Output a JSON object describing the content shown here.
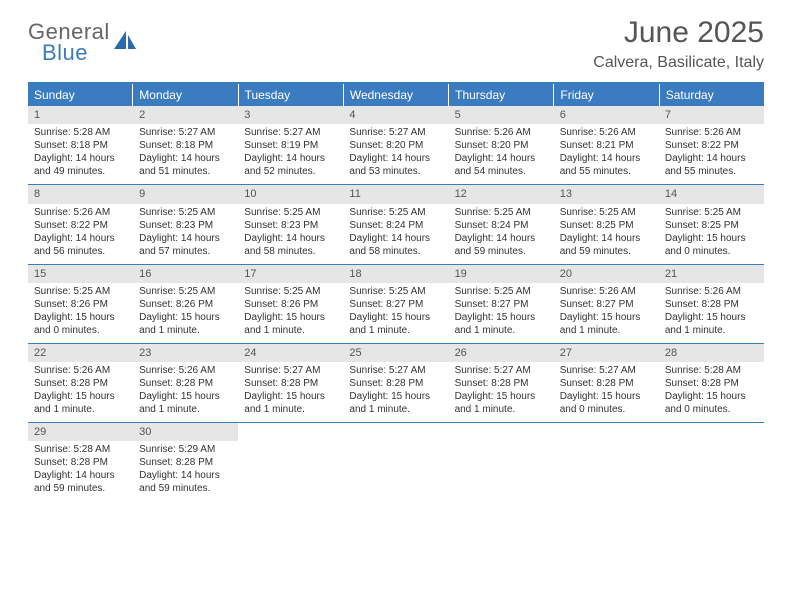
{
  "logo": {
    "general": "General",
    "blue": "Blue"
  },
  "header": {
    "title": "June 2025",
    "location": "Calvera, Basilicate, Italy"
  },
  "colors": {
    "brand": "#3b7bbf",
    "text": "#555555",
    "header_bg": "#e6e6e6"
  },
  "weekdays": [
    "Sunday",
    "Monday",
    "Tuesday",
    "Wednesday",
    "Thursday",
    "Friday",
    "Saturday"
  ],
  "weeks": [
    [
      {
        "n": "1",
        "sr": "Sunrise: 5:28 AM",
        "ss": "Sunset: 8:18 PM",
        "d1": "Daylight: 14 hours",
        "d2": "and 49 minutes."
      },
      {
        "n": "2",
        "sr": "Sunrise: 5:27 AM",
        "ss": "Sunset: 8:18 PM",
        "d1": "Daylight: 14 hours",
        "d2": "and 51 minutes."
      },
      {
        "n": "3",
        "sr": "Sunrise: 5:27 AM",
        "ss": "Sunset: 8:19 PM",
        "d1": "Daylight: 14 hours",
        "d2": "and 52 minutes."
      },
      {
        "n": "4",
        "sr": "Sunrise: 5:27 AM",
        "ss": "Sunset: 8:20 PM",
        "d1": "Daylight: 14 hours",
        "d2": "and 53 minutes."
      },
      {
        "n": "5",
        "sr": "Sunrise: 5:26 AM",
        "ss": "Sunset: 8:20 PM",
        "d1": "Daylight: 14 hours",
        "d2": "and 54 minutes."
      },
      {
        "n": "6",
        "sr": "Sunrise: 5:26 AM",
        "ss": "Sunset: 8:21 PM",
        "d1": "Daylight: 14 hours",
        "d2": "and 55 minutes."
      },
      {
        "n": "7",
        "sr": "Sunrise: 5:26 AM",
        "ss": "Sunset: 8:22 PM",
        "d1": "Daylight: 14 hours",
        "d2": "and 55 minutes."
      }
    ],
    [
      {
        "n": "8",
        "sr": "Sunrise: 5:26 AM",
        "ss": "Sunset: 8:22 PM",
        "d1": "Daylight: 14 hours",
        "d2": "and 56 minutes."
      },
      {
        "n": "9",
        "sr": "Sunrise: 5:25 AM",
        "ss": "Sunset: 8:23 PM",
        "d1": "Daylight: 14 hours",
        "d2": "and 57 minutes."
      },
      {
        "n": "10",
        "sr": "Sunrise: 5:25 AM",
        "ss": "Sunset: 8:23 PM",
        "d1": "Daylight: 14 hours",
        "d2": "and 58 minutes."
      },
      {
        "n": "11",
        "sr": "Sunrise: 5:25 AM",
        "ss": "Sunset: 8:24 PM",
        "d1": "Daylight: 14 hours",
        "d2": "and 58 minutes."
      },
      {
        "n": "12",
        "sr": "Sunrise: 5:25 AM",
        "ss": "Sunset: 8:24 PM",
        "d1": "Daylight: 14 hours",
        "d2": "and 59 minutes."
      },
      {
        "n": "13",
        "sr": "Sunrise: 5:25 AM",
        "ss": "Sunset: 8:25 PM",
        "d1": "Daylight: 14 hours",
        "d2": "and 59 minutes."
      },
      {
        "n": "14",
        "sr": "Sunrise: 5:25 AM",
        "ss": "Sunset: 8:25 PM",
        "d1": "Daylight: 15 hours",
        "d2": "and 0 minutes."
      }
    ],
    [
      {
        "n": "15",
        "sr": "Sunrise: 5:25 AM",
        "ss": "Sunset: 8:26 PM",
        "d1": "Daylight: 15 hours",
        "d2": "and 0 minutes."
      },
      {
        "n": "16",
        "sr": "Sunrise: 5:25 AM",
        "ss": "Sunset: 8:26 PM",
        "d1": "Daylight: 15 hours",
        "d2": "and 1 minute."
      },
      {
        "n": "17",
        "sr": "Sunrise: 5:25 AM",
        "ss": "Sunset: 8:26 PM",
        "d1": "Daylight: 15 hours",
        "d2": "and 1 minute."
      },
      {
        "n": "18",
        "sr": "Sunrise: 5:25 AM",
        "ss": "Sunset: 8:27 PM",
        "d1": "Daylight: 15 hours",
        "d2": "and 1 minute."
      },
      {
        "n": "19",
        "sr": "Sunrise: 5:25 AM",
        "ss": "Sunset: 8:27 PM",
        "d1": "Daylight: 15 hours",
        "d2": "and 1 minute."
      },
      {
        "n": "20",
        "sr": "Sunrise: 5:26 AM",
        "ss": "Sunset: 8:27 PM",
        "d1": "Daylight: 15 hours",
        "d2": "and 1 minute."
      },
      {
        "n": "21",
        "sr": "Sunrise: 5:26 AM",
        "ss": "Sunset: 8:28 PM",
        "d1": "Daylight: 15 hours",
        "d2": "and 1 minute."
      }
    ],
    [
      {
        "n": "22",
        "sr": "Sunrise: 5:26 AM",
        "ss": "Sunset: 8:28 PM",
        "d1": "Daylight: 15 hours",
        "d2": "and 1 minute."
      },
      {
        "n": "23",
        "sr": "Sunrise: 5:26 AM",
        "ss": "Sunset: 8:28 PM",
        "d1": "Daylight: 15 hours",
        "d2": "and 1 minute."
      },
      {
        "n": "24",
        "sr": "Sunrise: 5:27 AM",
        "ss": "Sunset: 8:28 PM",
        "d1": "Daylight: 15 hours",
        "d2": "and 1 minute."
      },
      {
        "n": "25",
        "sr": "Sunrise: 5:27 AM",
        "ss": "Sunset: 8:28 PM",
        "d1": "Daylight: 15 hours",
        "d2": "and 1 minute."
      },
      {
        "n": "26",
        "sr": "Sunrise: 5:27 AM",
        "ss": "Sunset: 8:28 PM",
        "d1": "Daylight: 15 hours",
        "d2": "and 1 minute."
      },
      {
        "n": "27",
        "sr": "Sunrise: 5:27 AM",
        "ss": "Sunset: 8:28 PM",
        "d1": "Daylight: 15 hours",
        "d2": "and 0 minutes."
      },
      {
        "n": "28",
        "sr": "Sunrise: 5:28 AM",
        "ss": "Sunset: 8:28 PM",
        "d1": "Daylight: 15 hours",
        "d2": "and 0 minutes."
      }
    ],
    [
      {
        "n": "29",
        "sr": "Sunrise: 5:28 AM",
        "ss": "Sunset: 8:28 PM",
        "d1": "Daylight: 14 hours",
        "d2": "and 59 minutes."
      },
      {
        "n": "30",
        "sr": "Sunrise: 5:29 AM",
        "ss": "Sunset: 8:28 PM",
        "d1": "Daylight: 14 hours",
        "d2": "and 59 minutes."
      },
      {
        "empty": true
      },
      {
        "empty": true
      },
      {
        "empty": true
      },
      {
        "empty": true
      },
      {
        "empty": true
      }
    ]
  ]
}
